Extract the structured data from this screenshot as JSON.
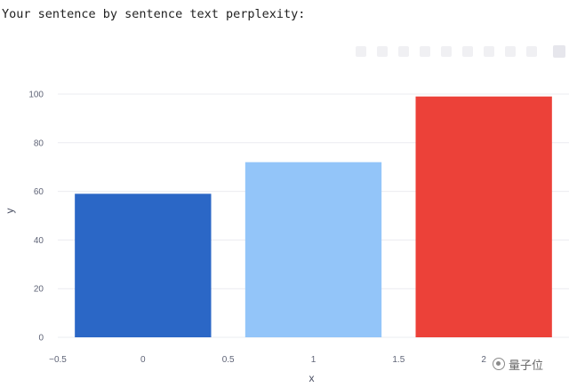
{
  "heading": "Your sentence by sentence text perplexity:",
  "toolbar": {
    "icons": [
      "camera-icon",
      "zoom-icon",
      "pan-icon",
      "box-select-icon",
      "lasso-select-icon",
      "zoom-in-icon",
      "zoom-out-icon",
      "autoscale-icon",
      "reset-axes-icon",
      "plotly-logo-icon"
    ]
  },
  "watermark": {
    "text": "量子位",
    "icon": "wechat-icon"
  },
  "chart_data": {
    "type": "bar",
    "x": [
      0,
      1,
      2
    ],
    "values": [
      59,
      72,
      99
    ],
    "colors": [
      "#2b67c6",
      "#93c5f9",
      "#ec4139"
    ],
    "bar_width": 0.8,
    "xlabel": "x",
    "ylabel": "y",
    "xlim": [
      -0.5,
      2.5
    ],
    "ylim": [
      0,
      104
    ],
    "x_ticks": [
      -0.5,
      0,
      0.5,
      1,
      1.5,
      2
    ],
    "x_tick_labels": [
      "−0.5",
      "0",
      "0.5",
      "1",
      "1.5",
      "2"
    ],
    "y_ticks": [
      0,
      20,
      40,
      60,
      80,
      100
    ],
    "y_tick_labels": [
      "0",
      "20",
      "40",
      "60",
      "80",
      "100"
    ],
    "grid": true,
    "grid_color": "#ebecf0"
  }
}
